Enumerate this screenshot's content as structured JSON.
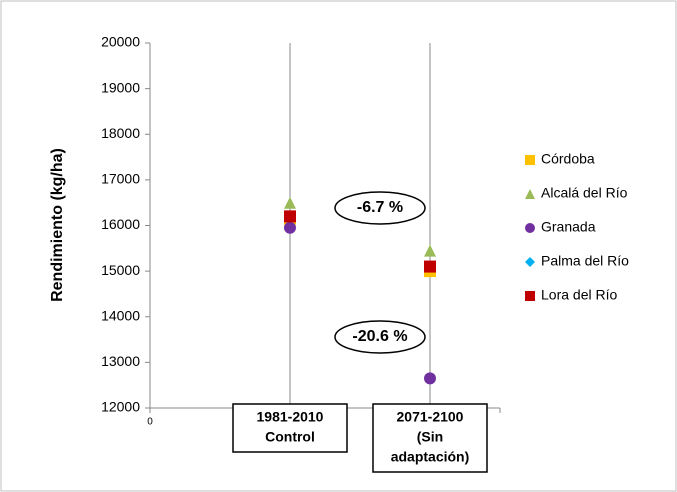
{
  "chart_data": {
    "type": "scatter",
    "y_label": "Rendimiento (kg/ha)",
    "x": [
      1,
      2
    ],
    "category_labels": [
      [
        "1981-2010",
        "Control"
      ],
      [
        "2071-2100",
        "(Sin",
        "adaptación)"
      ]
    ],
    "xlim": [
      0,
      2.5
    ],
    "xticks": [
      0
    ],
    "ylim": [
      12000,
      20000
    ],
    "yticks": [
      12000,
      13000,
      14000,
      15000,
      16000,
      17000,
      18000,
      19000,
      20000
    ],
    "series": [
      {
        "name": "Córdoba",
        "color": "#ffc000",
        "marker": "square",
        "values": [
          16150,
          15000
        ]
      },
      {
        "name": "Alcalá del Río",
        "color": "#9bbb59",
        "marker": "triangle",
        "values": [
          16500,
          15450
        ]
      },
      {
        "name": "Granada",
        "color": "#7030a0",
        "marker": "circle",
        "values": [
          15950,
          12650
        ]
      },
      {
        "name": "Palma del Río",
        "color": "#00b0f0",
        "marker": "diamond",
        "values": [
          16200,
          15100
        ]
      },
      {
        "name": "Lora del Río",
        "color": "#c00000",
        "marker": "square",
        "values": [
          16200,
          15100
        ]
      }
    ],
    "annotations": [
      "-6.7 %",
      "-20.6 %"
    ]
  }
}
